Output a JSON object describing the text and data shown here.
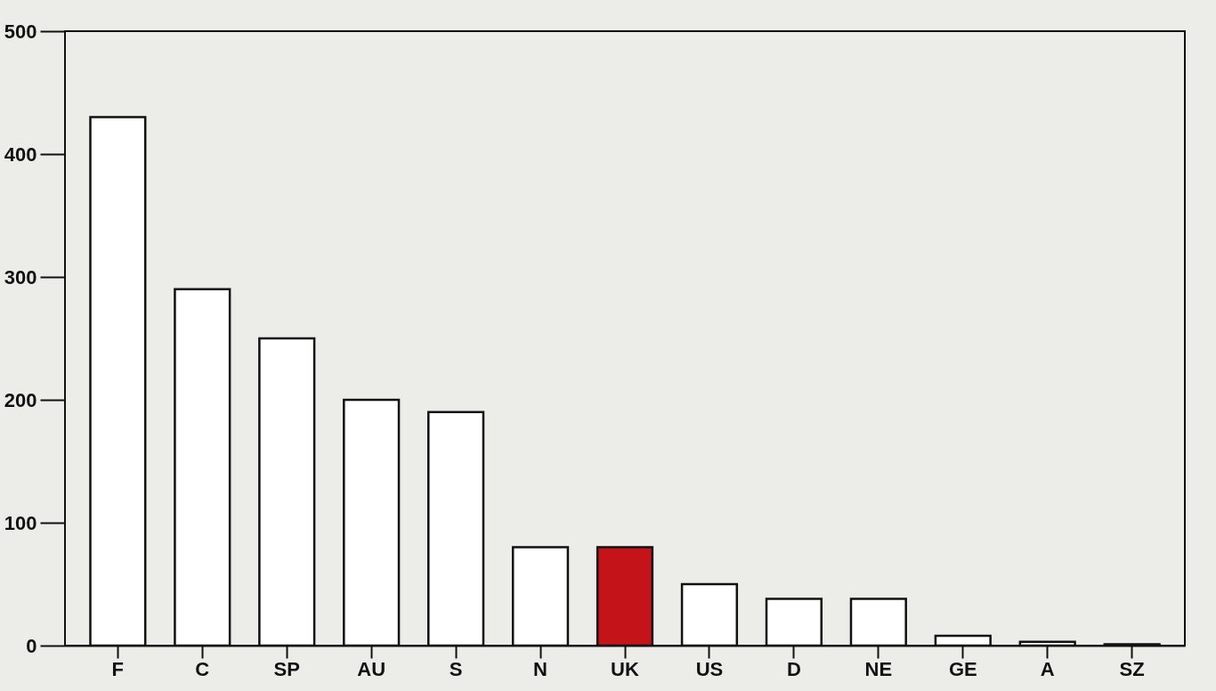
{
  "chart_data": {
    "type": "bar",
    "categories": [
      "F",
      "C",
      "SP",
      "AU",
      "S",
      "N",
      "UK",
      "US",
      "D",
      "NE",
      "GE",
      "A",
      "SZ"
    ],
    "values": [
      430,
      290,
      250,
      200,
      190,
      80,
      80,
      50,
      38,
      38,
      8,
      3,
      1
    ],
    "colors": [
      "#ffffff",
      "#ffffff",
      "#ffffff",
      "#ffffff",
      "#ffffff",
      "#ffffff",
      "#c4141a",
      "#ffffff",
      "#ffffff",
      "#ffffff",
      "#ffffff",
      "#ffffff",
      "#ffffff"
    ],
    "ylim": [
      0,
      500
    ],
    "yticks": [
      0,
      100,
      200,
      300,
      400,
      500
    ],
    "grid": false
  }
}
